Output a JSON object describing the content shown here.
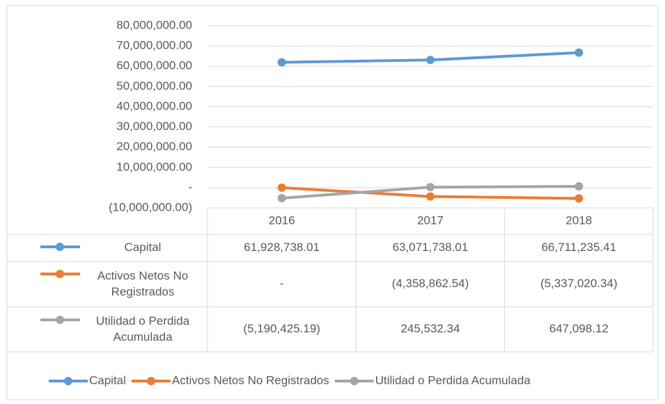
{
  "chart_data": {
    "type": "line",
    "categories": [
      "2016",
      "2017",
      "2018"
    ],
    "series": [
      {
        "name": "Capital",
        "color": "#5b9bd5",
        "values": [
          61928738.01,
          63071738.01,
          66711235.41
        ],
        "value_labels": [
          "61,928,738.01",
          "63,071,738.01",
          "66,711,235.41"
        ]
      },
      {
        "name": "Activos Netos No Registrados",
        "color": "#ed7d31",
        "values": [
          0,
          -4358862.54,
          -5337020.34
        ],
        "value_labels": [
          "-",
          "(4,358,862.54)",
          "(5,337,020.34)"
        ]
      },
      {
        "name": "Utilidad o Perdida Acumulada",
        "color": "#a5a5a5",
        "values": [
          -5190425.19,
          245532.34,
          647098.12
        ],
        "value_labels": [
          "(5,190,425.19)",
          "245,532.34",
          "647,098.12"
        ]
      }
    ],
    "ylim": [
      -10000000,
      80000000
    ],
    "yticks": [
      {
        "value": -10000000,
        "label": "(10,000,000.00)"
      },
      {
        "value": 0,
        "label": "-"
      },
      {
        "value": 10000000,
        "label": "10,000,000.00"
      },
      {
        "value": 20000000,
        "label": "20,000,000.00"
      },
      {
        "value": 30000000,
        "label": "30,000,000.00"
      },
      {
        "value": 40000000,
        "label": "40,000,000.00"
      },
      {
        "value": 50000000,
        "label": "50,000,000.00"
      },
      {
        "value": 60000000,
        "label": "60,000,000.00"
      },
      {
        "value": 70000000,
        "label": "70,000,000.00"
      },
      {
        "value": 80000000,
        "label": "80,000,000.00"
      }
    ],
    "grid": true,
    "legend": "bottom",
    "data_table": true
  }
}
